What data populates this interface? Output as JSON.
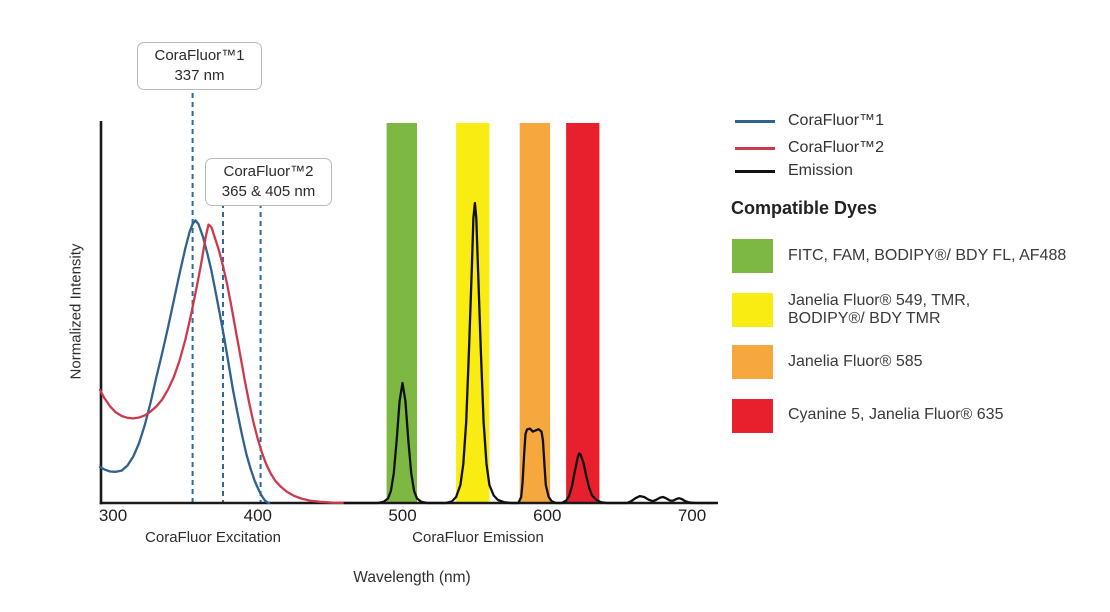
{
  "legend": {
    "items": [
      {
        "id": "corafluor1",
        "label": "CoraFluor™1",
        "color": "#2f6191"
      },
      {
        "id": "corafluor2",
        "label": "CoraFluor™2",
        "color": "#cd3a4e"
      },
      {
        "id": "emission",
        "label": "Emission",
        "color": "#111111"
      }
    ]
  },
  "compatible_dyes": {
    "heading": "Compatible Dyes",
    "items": [
      {
        "id": "green",
        "color": "#7cb842",
        "lines": [
          "FITC, FAM, BODIPY®/ BDY FL, AF488"
        ]
      },
      {
        "id": "yellow",
        "color": "#f9ec13",
        "lines": [
          "Janelia Fluor® 549, TMR,",
          "BODIPY®/ BDY TMR"
        ]
      },
      {
        "id": "orange",
        "color": "#f6a83f",
        "lines": [
          "Janelia Fluor® 585"
        ]
      },
      {
        "id": "red",
        "color": "#e8202e",
        "lines": [
          "Cyanine 5, Janelia Fluor® 635"
        ]
      }
    ]
  },
  "chart_data": {
    "type": "line",
    "xlabel": "Wavelength (nm)",
    "ylabel": "Normalized Intensity",
    "x_unit": "nm",
    "xlim": [
      291,
      718
    ],
    "ylim": [
      0,
      1.05
    ],
    "grid": false,
    "x_ticks": [
      300,
      400,
      500,
      600,
      700
    ],
    "axis_color": "#1a1a1a",
    "annotation_line_color": "#2c6a9c",
    "section_labels": [
      {
        "text": "CoraFluor Excitation"
      },
      {
        "text": "CoraFluor Emission"
      }
    ],
    "annotations": [
      {
        "title": "CoraFluor™1",
        "subtitle": "337 nm",
        "lines_nm": [
          355
        ]
      },
      {
        "title": "CoraFluor™2",
        "subtitle": "365 & 405 nm",
        "lines_nm": [
          376,
          402
        ]
      }
    ],
    "bands": [
      {
        "id": "green",
        "dyes": "FITC, FAM, BODIPY/ BDY FL, AF488",
        "from_nm": 489,
        "to_nm": 510,
        "color": "#7cb842"
      },
      {
        "id": "yellow",
        "dyes": "Janelia Fluor 549, TMR, BODIPY/ BDY TMR",
        "from_nm": 537,
        "to_nm": 560,
        "color": "#f9ec13"
      },
      {
        "id": "orange",
        "dyes": "Janelia Fluor 585",
        "from_nm": 581,
        "to_nm": 602,
        "color": "#f6a83f"
      },
      {
        "id": "red",
        "dyes": "Cyanine 5, Janelia Fluor 635",
        "from_nm": 613,
        "to_nm": 636,
        "color": "#e8202e"
      }
    ],
    "series": [
      {
        "id": "corafluor1-excitation",
        "name": "CoraFluor™1",
        "color": "#2f6191",
        "points": [
          [
            291,
            0.12
          ],
          [
            294,
            0.112
          ],
          [
            298,
            0.105
          ],
          [
            302,
            0.104
          ],
          [
            306,
            0.108
          ],
          [
            310,
            0.125
          ],
          [
            314,
            0.155
          ],
          [
            318,
            0.2
          ],
          [
            322,
            0.26
          ],
          [
            326,
            0.335
          ],
          [
            330,
            0.42
          ],
          [
            334,
            0.5
          ],
          [
            338,
            0.585
          ],
          [
            342,
            0.675
          ],
          [
            346,
            0.765
          ],
          [
            350,
            0.85
          ],
          [
            353,
            0.905
          ],
          [
            355,
            0.93
          ],
          [
            357,
            0.942
          ],
          [
            359,
            0.93
          ],
          [
            362,
            0.89
          ],
          [
            365,
            0.835
          ],
          [
            368,
            0.775
          ],
          [
            371,
            0.7
          ],
          [
            374,
            0.625
          ],
          [
            377,
            0.545
          ],
          [
            380,
            0.46
          ],
          [
            383,
            0.375
          ],
          [
            386,
            0.3
          ],
          [
            389,
            0.23
          ],
          [
            392,
            0.165
          ],
          [
            395,
            0.115
          ],
          [
            398,
            0.072
          ],
          [
            401,
            0.04
          ],
          [
            403,
            0.022
          ],
          [
            405,
            0.008
          ],
          [
            407,
            0.001
          ],
          [
            408,
            0
          ]
        ]
      },
      {
        "id": "corafluor2-excitation",
        "name": "CoraFluor™2",
        "color": "#cd3a4e",
        "points": [
          [
            291,
            0.377
          ],
          [
            294,
            0.35
          ],
          [
            298,
            0.322
          ],
          [
            302,
            0.302
          ],
          [
            306,
            0.29
          ],
          [
            310,
            0.284
          ],
          [
            314,
            0.282
          ],
          [
            318,
            0.285
          ],
          [
            322,
            0.292
          ],
          [
            326,
            0.305
          ],
          [
            330,
            0.322
          ],
          [
            334,
            0.345
          ],
          [
            338,
            0.378
          ],
          [
            342,
            0.42
          ],
          [
            346,
            0.475
          ],
          [
            350,
            0.545
          ],
          [
            354,
            0.63
          ],
          [
            358,
            0.725
          ],
          [
            361,
            0.8
          ],
          [
            364,
            0.885
          ],
          [
            366,
            0.928
          ],
          [
            368,
            0.92
          ],
          [
            370,
            0.89
          ],
          [
            373,
            0.845
          ],
          [
            376,
            0.79
          ],
          [
            379,
            0.725
          ],
          [
            382,
            0.65
          ],
          [
            385,
            0.57
          ],
          [
            388,
            0.49
          ],
          [
            391,
            0.41
          ],
          [
            394,
            0.335
          ],
          [
            397,
            0.27
          ],
          [
            400,
            0.213
          ],
          [
            403,
            0.166
          ],
          [
            406,
            0.128
          ],
          [
            409,
            0.098
          ],
          [
            412,
            0.075
          ],
          [
            416,
            0.054
          ],
          [
            420,
            0.038
          ],
          [
            425,
            0.024
          ],
          [
            430,
            0.015
          ],
          [
            436,
            0.008
          ],
          [
            443,
            0.004
          ],
          [
            452,
            0.001
          ],
          [
            465,
            0
          ]
        ]
      },
      {
        "id": "emission",
        "name": "Emission",
        "color": "#111111",
        "points": [
          [
            460,
            0
          ],
          [
            483,
            0
          ],
          [
            487,
            0.004
          ],
          [
            490,
            0.015
          ],
          [
            492,
            0.04
          ],
          [
            494,
            0.1
          ],
          [
            496,
            0.21
          ],
          [
            498,
            0.34
          ],
          [
            500,
            0.4
          ],
          [
            502,
            0.34
          ],
          [
            504,
            0.21
          ],
          [
            506,
            0.1
          ],
          [
            508,
            0.04
          ],
          [
            510,
            0.015
          ],
          [
            513,
            0.004
          ],
          [
            517,
            0
          ],
          [
            530,
            0
          ],
          [
            534,
            0.005
          ],
          [
            537,
            0.02
          ],
          [
            540,
            0.06
          ],
          [
            542,
            0.13
          ],
          [
            544,
            0.27
          ],
          [
            546,
            0.52
          ],
          [
            548,
            0.8
          ],
          [
            549,
            0.95
          ],
          [
            550,
            1.0
          ],
          [
            551,
            0.95
          ],
          [
            552,
            0.8
          ],
          [
            554,
            0.52
          ],
          [
            556,
            0.27
          ],
          [
            558,
            0.13
          ],
          [
            560,
            0.06
          ],
          [
            563,
            0.025
          ],
          [
            566,
            0.01
          ],
          [
            570,
            0.003
          ],
          [
            575,
            0
          ],
          [
            580,
            0
          ],
          [
            582,
            0.02
          ],
          [
            583,
            0.07
          ],
          [
            584,
            0.16
          ],
          [
            585,
            0.23
          ],
          [
            586,
            0.245
          ],
          [
            588,
            0.248
          ],
          [
            590,
            0.238
          ],
          [
            592,
            0.242
          ],
          [
            594,
            0.246
          ],
          [
            596,
            0.238
          ],
          [
            597,
            0.21
          ],
          [
            598,
            0.13
          ],
          [
            599,
            0.06
          ],
          [
            601,
            0.02
          ],
          [
            603,
            0.006
          ],
          [
            606,
            0
          ],
          [
            610,
            0
          ],
          [
            613,
            0.008
          ],
          [
            615,
            0.022
          ],
          [
            617,
            0.055
          ],
          [
            619,
            0.105
          ],
          [
            621,
            0.15
          ],
          [
            622,
            0.165
          ],
          [
            623,
            0.162
          ],
          [
            625,
            0.135
          ],
          [
            627,
            0.09
          ],
          [
            629,
            0.05
          ],
          [
            631,
            0.025
          ],
          [
            634,
            0.01
          ],
          [
            637,
            0.003
          ],
          [
            641,
            0
          ],
          [
            655,
            0
          ],
          [
            658,
            0.006
          ],
          [
            661,
            0.016
          ],
          [
            664,
            0.023
          ],
          [
            667,
            0.02
          ],
          [
            670,
            0.011
          ],
          [
            673,
            0.006
          ],
          [
            675,
            0.01
          ],
          [
            678,
            0.018
          ],
          [
            680,
            0.02
          ],
          [
            682,
            0.016
          ],
          [
            685,
            0.008
          ],
          [
            687,
            0.008
          ],
          [
            689,
            0.013
          ],
          [
            691,
            0.016
          ],
          [
            693,
            0.013
          ],
          [
            695,
            0.007
          ],
          [
            698,
            0.002
          ],
          [
            702,
            0
          ],
          [
            716,
            0
          ]
        ]
      }
    ]
  }
}
